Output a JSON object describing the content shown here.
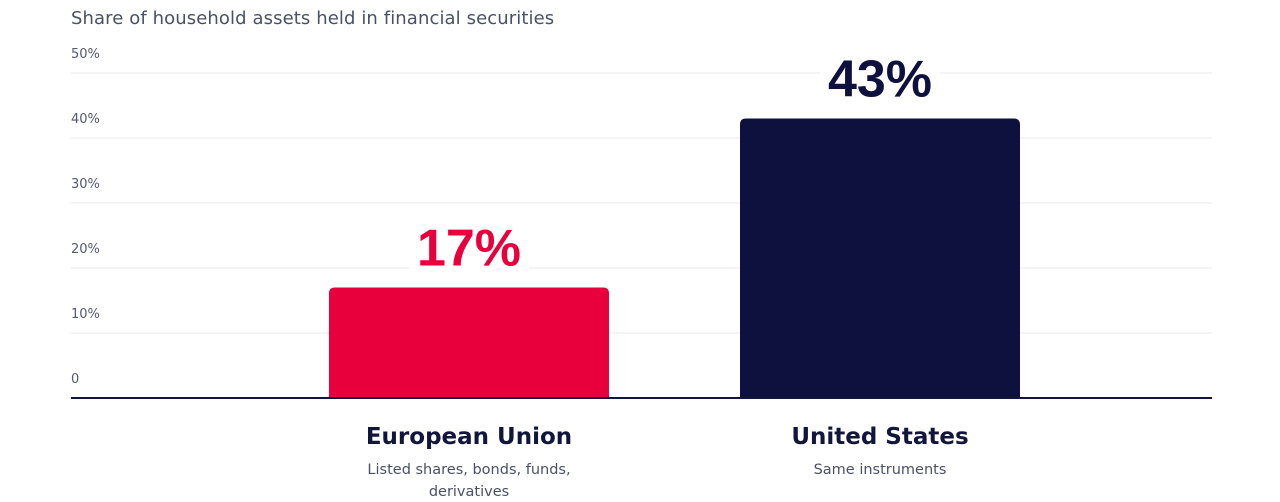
{
  "title": "Share of household assets held in financial securities",
  "chart_data": {
    "type": "bar",
    "title": "Share of household assets held in financial securities",
    "xlabel": "",
    "ylabel": "",
    "ylim": [
      0,
      50
    ],
    "y_ticks": [
      "0",
      "10%",
      "20%",
      "30%",
      "40%",
      "50%"
    ],
    "y_tick_values": [
      0,
      10,
      20,
      30,
      40,
      50
    ],
    "grid": true,
    "categories": [
      "European Union",
      "United States"
    ],
    "subtitles": [
      "Listed shares, bonds, funds, derivatives",
      "Same instruments"
    ],
    "values": [
      17,
      43
    ],
    "value_labels": [
      "17%",
      "43%"
    ],
    "colors": [
      "#e8003d",
      "#0e103d"
    ]
  }
}
